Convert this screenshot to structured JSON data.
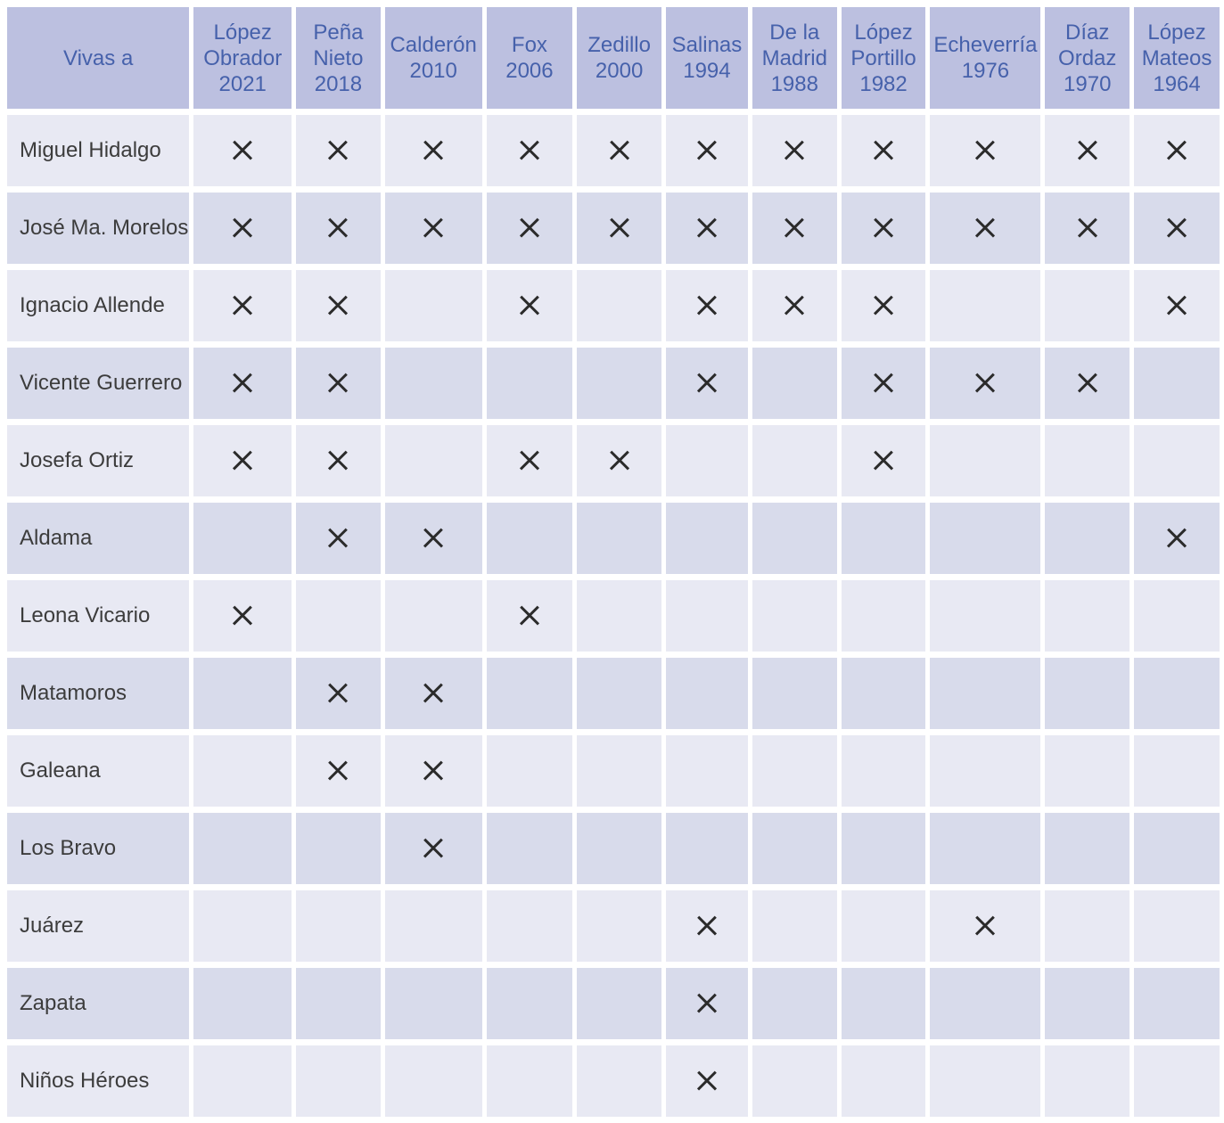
{
  "title": "Vivas a",
  "colors": {
    "header_bg": "#bcc0e0",
    "header_text": "#4661ab",
    "row_odd_bg": "#e8e9f3",
    "row_even_bg": "#d8dbeb",
    "row_text": "#3c3c3c",
    "mark_color": "#2b2b2b",
    "gutter": "#ffffff"
  },
  "table": {
    "corner_label": "Vivas a",
    "mark_symbol": "✕",
    "columns": [
      {
        "name": "López Obrador",
        "year": "2021",
        "lines": [
          "López",
          "Obrador",
          "2021"
        ]
      },
      {
        "name": "Peña Nieto",
        "year": "2018",
        "lines": [
          "Peña",
          "Nieto",
          "2018"
        ]
      },
      {
        "name": "Calderón",
        "year": "2010",
        "lines": [
          "Calderón",
          "2010"
        ]
      },
      {
        "name": "Fox",
        "year": "2006",
        "lines": [
          "Fox",
          "2006"
        ]
      },
      {
        "name": "Zedillo",
        "year": "2000",
        "lines": [
          "Zedillo",
          "2000"
        ]
      },
      {
        "name": "Salinas",
        "year": "1994",
        "lines": [
          "Salinas",
          "1994"
        ]
      },
      {
        "name": "De la Madrid",
        "year": "1988",
        "lines": [
          "De la",
          "Madrid",
          "1988"
        ]
      },
      {
        "name": "López Portillo",
        "year": "1982",
        "lines": [
          "López",
          "Portillo",
          "1982"
        ]
      },
      {
        "name": "Echeverría",
        "year": "1976",
        "lines": [
          "Echeverría",
          "1976"
        ]
      },
      {
        "name": "Díaz Ordaz",
        "year": "1970",
        "lines": [
          "Díaz",
          "Ordaz",
          "1970"
        ]
      },
      {
        "name": "López Mateos",
        "year": "1964",
        "lines": [
          "López",
          "Mateos",
          "1964"
        ]
      }
    ],
    "rows": [
      {
        "label": "Miguel Hidalgo",
        "marks": [
          1,
          1,
          1,
          1,
          1,
          1,
          1,
          1,
          1,
          1,
          1
        ]
      },
      {
        "label": "José Ma. Morelos",
        "marks": [
          1,
          1,
          1,
          1,
          1,
          1,
          1,
          1,
          1,
          1,
          1
        ]
      },
      {
        "label": "Ignacio Allende",
        "marks": [
          1,
          1,
          0,
          1,
          0,
          1,
          1,
          1,
          0,
          0,
          1
        ]
      },
      {
        "label": "Vicente Guerrero",
        "marks": [
          1,
          1,
          0,
          0,
          0,
          1,
          0,
          1,
          1,
          1,
          0
        ]
      },
      {
        "label": "Josefa Ortiz",
        "marks": [
          1,
          1,
          0,
          1,
          1,
          0,
          0,
          1,
          0,
          0,
          0
        ]
      },
      {
        "label": "Aldama",
        "marks": [
          0,
          1,
          1,
          0,
          0,
          0,
          0,
          0,
          0,
          0,
          1
        ]
      },
      {
        "label": "Leona Vicario",
        "marks": [
          1,
          0,
          0,
          1,
          0,
          0,
          0,
          0,
          0,
          0,
          0
        ]
      },
      {
        "label": "Matamoros",
        "marks": [
          0,
          1,
          1,
          0,
          0,
          0,
          0,
          0,
          0,
          0,
          0
        ]
      },
      {
        "label": "Galeana",
        "marks": [
          0,
          1,
          1,
          0,
          0,
          0,
          0,
          0,
          0,
          0,
          0
        ]
      },
      {
        "label": "Los Bravo",
        "marks": [
          0,
          0,
          1,
          0,
          0,
          0,
          0,
          0,
          0,
          0,
          0
        ]
      },
      {
        "label": "Juárez",
        "marks": [
          0,
          0,
          0,
          0,
          0,
          1,
          0,
          0,
          1,
          0,
          0
        ]
      },
      {
        "label": "Zapata",
        "marks": [
          0,
          0,
          0,
          0,
          0,
          1,
          0,
          0,
          0,
          0,
          0
        ]
      },
      {
        "label": "Niños Héroes",
        "marks": [
          0,
          0,
          0,
          0,
          0,
          1,
          0,
          0,
          0,
          0,
          0
        ]
      }
    ]
  },
  "chart_data": {
    "type": "table",
    "title": "Vivas a",
    "columns": [
      "López Obrador 2021",
      "Peña Nieto 2018",
      "Calderón 2010",
      "Fox 2006",
      "Zedillo 2000",
      "Salinas 1994",
      "De la Madrid 1988",
      "López Portillo 1982",
      "Echeverría 1976",
      "Díaz Ordaz 1970",
      "López Mateos 1964"
    ],
    "rows": [
      "Miguel Hidalgo",
      "José Ma. Morelos",
      "Ignacio Allende",
      "Vicente Guerrero",
      "Josefa Ortiz",
      "Aldama",
      "Leona Vicario",
      "Matamoros",
      "Galeana",
      "Los Bravo",
      "Juárez",
      "Zapata",
      "Niños Héroes"
    ],
    "cell_symbol": "✕",
    "matrix": [
      [
        1,
        1,
        1,
        1,
        1,
        1,
        1,
        1,
        1,
        1,
        1
      ],
      [
        1,
        1,
        1,
        1,
        1,
        1,
        1,
        1,
        1,
        1,
        1
      ],
      [
        1,
        1,
        0,
        1,
        0,
        1,
        1,
        1,
        0,
        0,
        1
      ],
      [
        1,
        1,
        0,
        0,
        0,
        1,
        0,
        1,
        1,
        1,
        0
      ],
      [
        1,
        1,
        0,
        1,
        1,
        0,
        0,
        1,
        0,
        0,
        0
      ],
      [
        0,
        1,
        1,
        0,
        0,
        0,
        0,
        0,
        0,
        0,
        1
      ],
      [
        1,
        0,
        0,
        1,
        0,
        0,
        0,
        0,
        0,
        0,
        0
      ],
      [
        0,
        1,
        1,
        0,
        0,
        0,
        0,
        0,
        0,
        0,
        0
      ],
      [
        0,
        1,
        1,
        0,
        0,
        0,
        0,
        0,
        0,
        0,
        0
      ],
      [
        0,
        0,
        1,
        0,
        0,
        0,
        0,
        0,
        0,
        0,
        0
      ],
      [
        0,
        0,
        0,
        0,
        0,
        1,
        0,
        0,
        1,
        0,
        0
      ],
      [
        0,
        0,
        0,
        0,
        0,
        1,
        0,
        0,
        0,
        0,
        0
      ],
      [
        0,
        0,
        0,
        0,
        0,
        1,
        0,
        0,
        0,
        0,
        0
      ]
    ]
  }
}
